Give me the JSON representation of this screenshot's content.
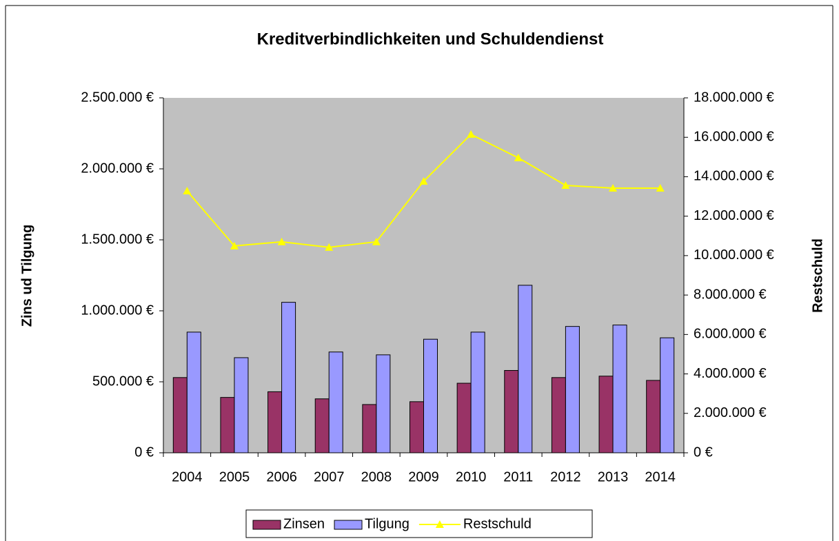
{
  "chart_data": {
    "type": "bar_line",
    "title": "Kreditverbindlichkeiten und Schuldendienst",
    "ylabel": "Zins ud Tilgung",
    "y2label": "Restschuld",
    "categories": [
      "2004",
      "2005",
      "2006",
      "2007",
      "2008",
      "2009",
      "2010",
      "2011",
      "2012",
      "2013",
      "2014"
    ],
    "series": [
      {
        "name": "Zinsen",
        "type": "bar",
        "color": "#993366",
        "values": [
          530000,
          390000,
          430000,
          380000,
          340000,
          360000,
          490000,
          580000,
          530000,
          540000,
          510000
        ]
      },
      {
        "name": "Tilgung",
        "type": "bar",
        "color": "#9999ff",
        "values": [
          850000,
          670000,
          1060000,
          710000,
          690000,
          800000,
          850000,
          1180000,
          890000,
          900000,
          810000
        ]
      },
      {
        "name": "Restschuld",
        "type": "line",
        "axis": "y2",
        "color": "#ffff00",
        "values": [
          13280000,
          10490000,
          10700000,
          10420000,
          10700000,
          13770000,
          16150000,
          14960000,
          13560000,
          13420000,
          13420000
        ]
      }
    ],
    "ylim": [
      0,
      2500000
    ],
    "yticks": [
      {
        "value": 0,
        "label": "0 €"
      },
      {
        "value": 500000,
        "label": "500.000 €"
      },
      {
        "value": 1000000,
        "label": "1.000.000 €"
      },
      {
        "value": 1500000,
        "label": "1.500.000 €"
      },
      {
        "value": 2000000,
        "label": "2.000.000 €"
      },
      {
        "value": 2500000,
        "label": "2.500.000 €"
      }
    ],
    "y2lim": [
      0,
      18000000
    ],
    "y2ticks": [
      {
        "value": 0,
        "label": "0 €"
      },
      {
        "value": 2000000,
        "label": "2.000.000 €"
      },
      {
        "value": 4000000,
        "label": "4.000.000 €"
      },
      {
        "value": 6000000,
        "label": "6.000.000 €"
      },
      {
        "value": 8000000,
        "label": "8.000.000 €"
      },
      {
        "value": 10000000,
        "label": "10.000.000 €"
      },
      {
        "value": 12000000,
        "label": "12.000.000 €"
      },
      {
        "value": 14000000,
        "label": "14.000.000 €"
      },
      {
        "value": 16000000,
        "label": "16.000.000 €"
      },
      {
        "value": 18000000,
        "label": "18.000.000 €"
      }
    ],
    "legend": "bottom"
  }
}
